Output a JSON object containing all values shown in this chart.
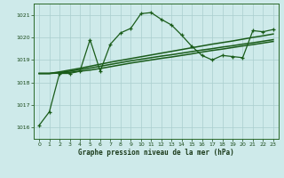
{
  "title": "Graphe pression niveau de la mer (hPa)",
  "bg_color": "#ceeaea",
  "grid_color": "#aacece",
  "line_color": "#1a5c1a",
  "x_min": 0,
  "x_max": 23,
  "y_min": 1015.5,
  "y_max": 1021.5,
  "y_ticks": [
    1016,
    1017,
    1018,
    1019,
    1020,
    1021
  ],
  "series_main": [
    1016.1,
    1016.7,
    1018.4,
    1018.4,
    1018.5,
    1019.9,
    1018.5,
    1019.7,
    1020.2,
    1020.4,
    1021.05,
    1021.1,
    1020.8,
    1020.55,
    1020.1,
    1019.6,
    1019.2,
    1019.0,
    1019.2,
    1019.15,
    1019.1,
    1020.3,
    1020.25,
    1020.35
  ],
  "series_smooth": [
    [
      1018.4,
      1018.4,
      1018.42,
      1018.45,
      1018.5,
      1018.55,
      1018.62,
      1018.7,
      1018.78,
      1018.86,
      1018.93,
      1019.0,
      1019.07,
      1019.13,
      1019.2,
      1019.27,
      1019.35,
      1019.42,
      1019.48,
      1019.55,
      1019.62,
      1019.68,
      1019.75,
      1019.82
    ],
    [
      1018.4,
      1018.4,
      1018.44,
      1018.5,
      1018.57,
      1018.64,
      1018.72,
      1018.8,
      1018.88,
      1018.96,
      1019.03,
      1019.1,
      1019.17,
      1019.23,
      1019.3,
      1019.37,
      1019.44,
      1019.5,
      1019.57,
      1019.63,
      1019.7,
      1019.76,
      1019.83,
      1019.9
    ],
    [
      1018.4,
      1018.4,
      1018.47,
      1018.55,
      1018.63,
      1018.72,
      1018.81,
      1018.9,
      1018.98,
      1019.06,
      1019.14,
      1019.22,
      1019.3,
      1019.38,
      1019.46,
      1019.54,
      1019.62,
      1019.7,
      1019.77,
      1019.84,
      1019.92,
      1020.0,
      1020.07,
      1020.15
    ]
  ],
  "linewidth_main": 0.9,
  "linewidth_smooth": 1.1,
  "markersize": 3.5,
  "markeredgewidth": 0.9
}
